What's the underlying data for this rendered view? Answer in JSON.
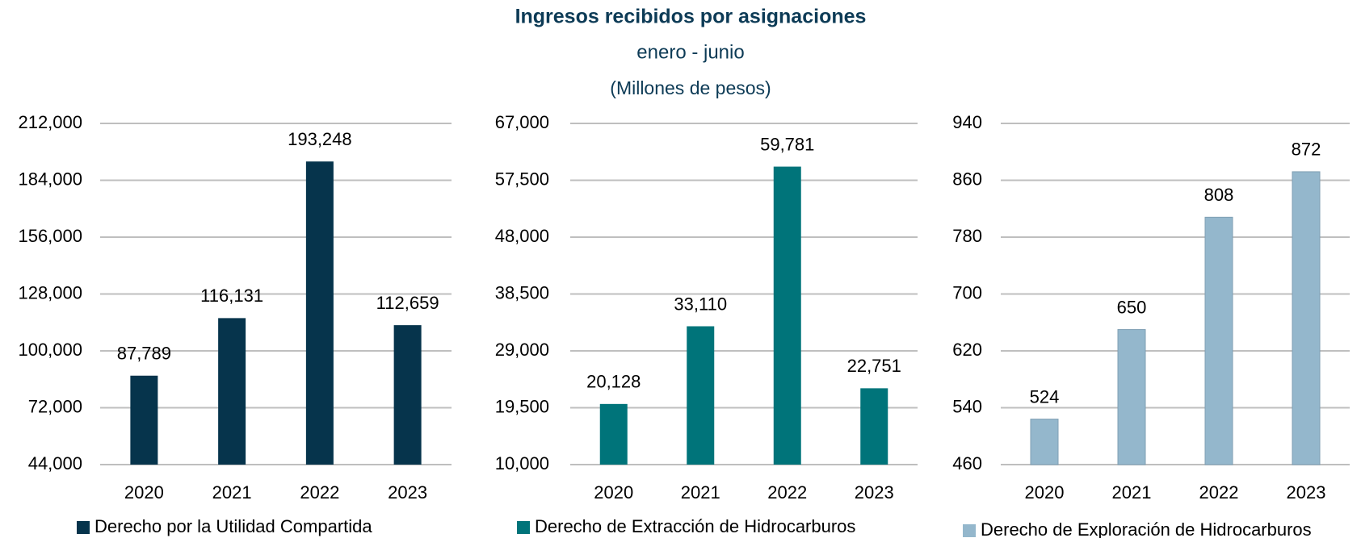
{
  "header": {
    "title": "Ingresos recibidos por asignaciones",
    "subtitle": "enero - junio",
    "units": "(Millones de pesos)"
  },
  "chart_data": [
    {
      "type": "bar",
      "categories": [
        "2020",
        "2021",
        "2022",
        "2023"
      ],
      "series": [
        {
          "name": "Derecho por la Utilidad Compartida",
          "color": "#06344c",
          "values": [
            87789,
            116131,
            193248,
            112659
          ],
          "value_labels": [
            "87,789",
            "116,131",
            "193,248",
            "112,659"
          ]
        }
      ],
      "ylim": [
        44000,
        212000
      ],
      "yticks": [
        {
          "value": 44000,
          "label": "44,000"
        },
        {
          "value": 72000,
          "label": "72,000"
        },
        {
          "value": 100000,
          "label": "100,000"
        },
        {
          "value": 128000,
          "label": "128,000"
        },
        {
          "value": 156000,
          "label": "156,000"
        },
        {
          "value": 184000,
          "label": "184,000"
        },
        {
          "value": 212000,
          "label": "212,000"
        }
      ],
      "grid": true
    },
    {
      "type": "bar",
      "categories": [
        "2020",
        "2021",
        "2022",
        "2023"
      ],
      "series": [
        {
          "name": "Derecho de Extracción de Hidrocarburos",
          "color": "#00747a",
          "values": [
            20128,
            33110,
            59781,
            22751
          ],
          "value_labels": [
            "20,128",
            "33,110",
            "59,781",
            "22,751"
          ]
        }
      ],
      "ylim": [
        10000,
        67000
      ],
      "yticks": [
        {
          "value": 10000,
          "label": "10,000"
        },
        {
          "value": 19500,
          "label": "19,500"
        },
        {
          "value": 29000,
          "label": "29,000"
        },
        {
          "value": 38500,
          "label": "38,500"
        },
        {
          "value": 48000,
          "label": "48,000"
        },
        {
          "value": 57500,
          "label": "57,500"
        },
        {
          "value": 67000,
          "label": "67,000"
        }
      ],
      "grid": true
    },
    {
      "type": "bar",
      "categories": [
        "2020",
        "2021",
        "2022",
        "2023"
      ],
      "series": [
        {
          "name": "Derecho de Exploración de Hidrocarburos",
          "color": "#94b7cc",
          "values": [
            524,
            650,
            808,
            872
          ]
        }
      ],
      "ylim": [
        460,
        940
      ],
      "yticks": [
        460,
        540,
        620,
        700,
        780,
        860,
        940
      ],
      "grid": true
    }
  ]
}
